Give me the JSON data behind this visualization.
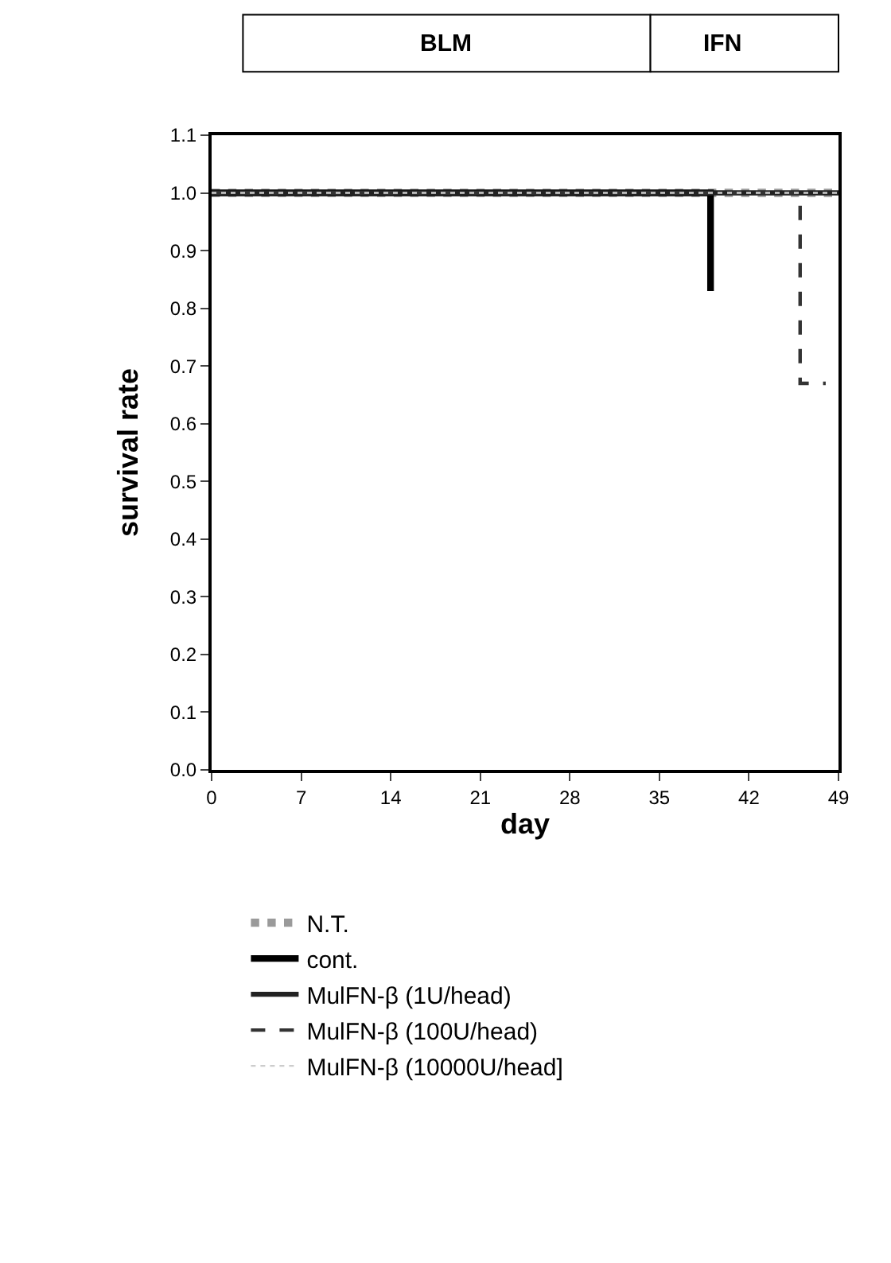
{
  "chart_data": {
    "type": "step",
    "xlabel": "day",
    "ylabel": "survival rate",
    "series": [
      {
        "name": "N.T.",
        "color": "#9a9a9a",
        "line_style": "dotted",
        "x": [
          0,
          49
        ],
        "values": [
          1.0,
          1.0
        ]
      },
      {
        "name": "cont.",
        "color": "#000000",
        "line_style": "solid",
        "x": [
          0,
          39
        ],
        "values": [
          1.0,
          0.83
        ]
      },
      {
        "name": "MulFN-β (1U/head)",
        "color": "#222222",
        "line_style": "solid",
        "x": [
          0,
          49
        ],
        "values": [
          1.0,
          1.0
        ]
      },
      {
        "name": "MulFN-β (100U/head)",
        "color": "#333333",
        "line_style": "dashed",
        "x": [
          0,
          46,
          48
        ],
        "values": [
          1.0,
          0.67,
          0.67
        ]
      },
      {
        "name": "MulFN-β (10000U/head]",
        "color": "#cccccc",
        "line_style": "dotted",
        "x": [
          0,
          49
        ],
        "values": [
          1.0,
          1.0
        ]
      }
    ],
    "xlim": [
      0,
      49
    ],
    "xticks": [
      0,
      7,
      14,
      21,
      28,
      35,
      42,
      49
    ],
    "ylim": [
      0,
      1.1
    ],
    "yticks": [
      {
        "value": 0,
        "label": "0.0"
      },
      0.1,
      0.2,
      0.3,
      0.4,
      0.5,
      0.6,
      0.7,
      0.8,
      0.9,
      {
        "value": 1,
        "label": "1.0"
      },
      1.1
    ],
    "annotations": [
      "BLM",
      "IFN"
    ],
    "legend": "bottom",
    "marker": "none"
  }
}
